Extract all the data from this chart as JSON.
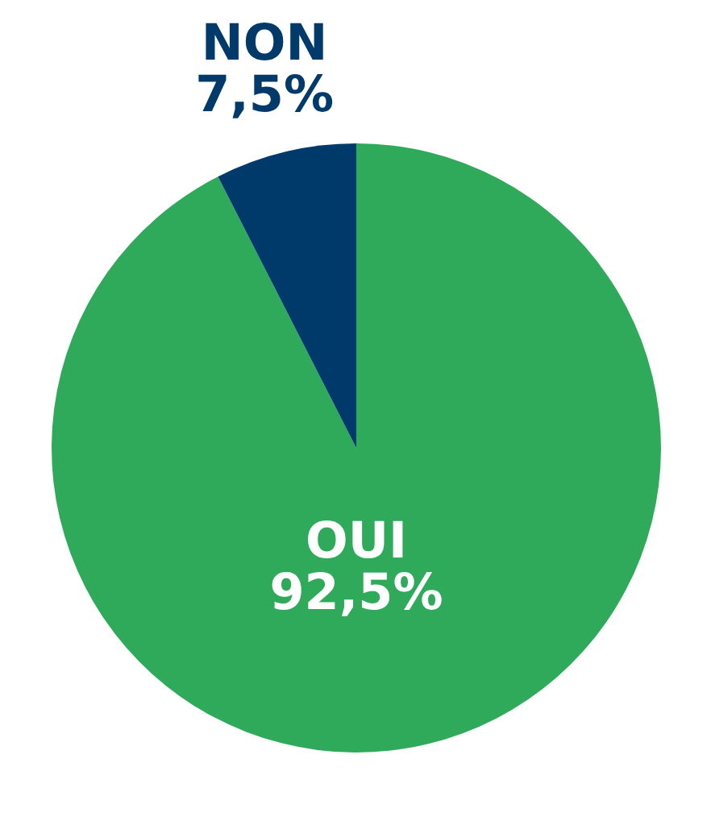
{
  "chart_data": {
    "type": "pie",
    "categories": [
      "OUI",
      "NON"
    ],
    "values": [
      92.5,
      7.5
    ],
    "colors": [
      "#2eaa5a",
      "#003a6b"
    ],
    "value_labels": [
      "92,5%",
      "7,5%"
    ]
  }
}
